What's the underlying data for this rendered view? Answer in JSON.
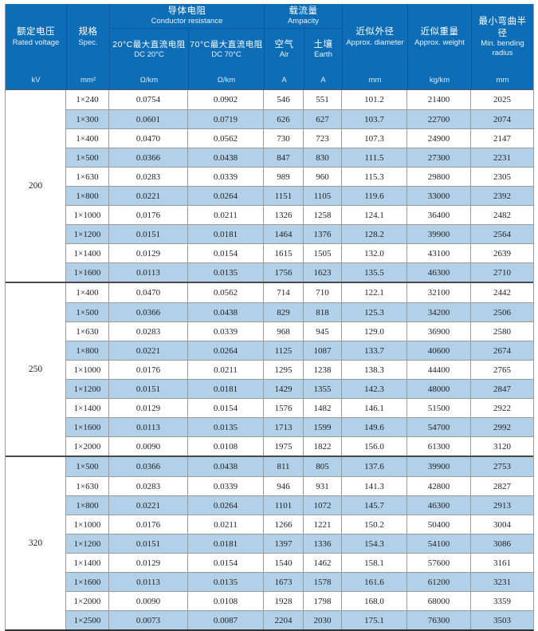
{
  "colors": {
    "header_blue": "#0d6db6",
    "header_divider_blue": "#0a5a9c",
    "row_stripe_blue": "#b2d1e9",
    "grid_line_gray": "#9b9b9b",
    "group_separator": "#4a4a4a",
    "data_text": "#222222",
    "header_text": "#ffffff"
  },
  "table": {
    "header": {
      "rated_voltage": {
        "zh": "额定电压",
        "en": "Rated voltage"
      },
      "spec": {
        "zh": "规格",
        "en": "Spec."
      },
      "conductor_resistance": {
        "zh": "导体电阻",
        "en": "Conductor resistance"
      },
      "dc20": {
        "line1": "20°C最大直流电阻",
        "line2": "DC 20°C"
      },
      "dc70": {
        "line1": "70°C最大直流电阻",
        "line2": "DC 70°C"
      },
      "ampacity": {
        "zh": "载流量",
        "en": "Ampacity"
      },
      "air": {
        "zh": "空气",
        "en": "Air"
      },
      "earth": {
        "zh": "土壤",
        "en": "Earth"
      },
      "diameter": {
        "zh": "近似外径",
        "en": "Approx. diameter"
      },
      "weight": {
        "zh": "近似重量",
        "en": "Approx. weight"
      },
      "bending": {
        "zh": "最小弯曲半径",
        "en": "Min. bending radius"
      },
      "units": [
        "kV",
        "mm²",
        "Ω/km",
        "Ω/km",
        "A",
        "A",
        "mm",
        "kg/km",
        "mm"
      ]
    },
    "columns": [
      "spec",
      "dc20",
      "dc70",
      "air",
      "earth",
      "diameter",
      "weight",
      "bending"
    ],
    "groups": [
      {
        "voltage": "200",
        "rows": [
          [
            "1×240",
            "0.0754",
            "0.0902",
            "546",
            "551",
            "101.2",
            "21400",
            "2025"
          ],
          [
            "1×300",
            "0.0601",
            "0.0719",
            "626",
            "627",
            "103.7",
            "22700",
            "2074"
          ],
          [
            "1×400",
            "0.0470",
            "0.0562",
            "730",
            "723",
            "107.3",
            "24900",
            "2147"
          ],
          [
            "1×500",
            "0.0366",
            "0.0438",
            "847",
            "830",
            "111.5",
            "27300",
            "2231"
          ],
          [
            "1×630",
            "0.0283",
            "0.0339",
            "989",
            "960",
            "115.3",
            "29800",
            "2305"
          ],
          [
            "1×800",
            "0.0221",
            "0.0264",
            "1151",
            "1105",
            "119.6",
            "33000",
            "2392"
          ],
          [
            "1×1000",
            "0.0176",
            "0.0211",
            "1326",
            "1258",
            "124.1",
            "36400",
            "2482"
          ],
          [
            "1×1200",
            "0.0151",
            "0.0181",
            "1464",
            "1376",
            "128.2",
            "39900",
            "2564"
          ],
          [
            "1×1400",
            "0.0129",
            "0.0154",
            "1615",
            "1505",
            "132.0",
            "43100",
            "2639"
          ],
          [
            "1×1600",
            "0.0113",
            "0.0135",
            "1756",
            "1623",
            "135.5",
            "46300",
            "2710"
          ]
        ]
      },
      {
        "voltage": "250",
        "rows": [
          [
            "1×400",
            "0.0470",
            "0.0562",
            "714",
            "710",
            "122.1",
            "32100",
            "2442"
          ],
          [
            "1×500",
            "0.0366",
            "0.0438",
            "829",
            "818",
            "125.3",
            "34200",
            "2506"
          ],
          [
            "1×630",
            "0.0283",
            "0.0339",
            "968",
            "945",
            "129.0",
            "36900",
            "2580"
          ],
          [
            "1×800",
            "0.0221",
            "0.0264",
            "1125",
            "1087",
            "133.7",
            "40600",
            "2674"
          ],
          [
            "1×1000",
            "0.0176",
            "0.0211",
            "1295",
            "1238",
            "138.3",
            "44400",
            "2765"
          ],
          [
            "1×1200",
            "0.0151",
            "0.0181",
            "1429",
            "1355",
            "142.3",
            "48000",
            "2847"
          ],
          [
            "1×1400",
            "0.0129",
            "0.0154",
            "1576",
            "1482",
            "146.1",
            "51500",
            "2922"
          ],
          [
            "1×1600",
            "0.0113",
            "0.0135",
            "1713",
            "1599",
            "149.6",
            "54700",
            "2992"
          ],
          [
            "1×2000",
            "0.0090",
            "0.0108",
            "1975",
            "1822",
            "156.0",
            "61300",
            "3120"
          ]
        ]
      },
      {
        "voltage": "320",
        "rows": [
          [
            "1×500",
            "0.0366",
            "0.0438",
            "811",
            "805",
            "137.6",
            "39900",
            "2753"
          ],
          [
            "1×630",
            "0.0283",
            "0.0339",
            "946",
            "931",
            "141.3",
            "42800",
            "2827"
          ],
          [
            "1×800",
            "0.0221",
            "0.0264",
            "1101",
            "1072",
            "145.7",
            "46300",
            "2913"
          ],
          [
            "1×1000",
            "0.0176",
            "0.0211",
            "1266",
            "1221",
            "150.2",
            "50400",
            "3004"
          ],
          [
            "1×1200",
            "0.0151",
            "0.0181",
            "1397",
            "1336",
            "154.3",
            "54100",
            "3086"
          ],
          [
            "1×1400",
            "0.0129",
            "0.0154",
            "1540",
            "1462",
            "158.1",
            "57600",
            "3161"
          ],
          [
            "1×1600",
            "0.0113",
            "0.0135",
            "1673",
            "1578",
            "161.6",
            "61200",
            "3231"
          ],
          [
            "1×2000",
            "0.0090",
            "0.0108",
            "1928",
            "1798",
            "168.0",
            "68000",
            "3359"
          ],
          [
            "1×2500",
            "0.0073",
            "0.0087",
            "2204",
            "2030",
            "175.1",
            "76300",
            "3503"
          ]
        ]
      }
    ]
  }
}
